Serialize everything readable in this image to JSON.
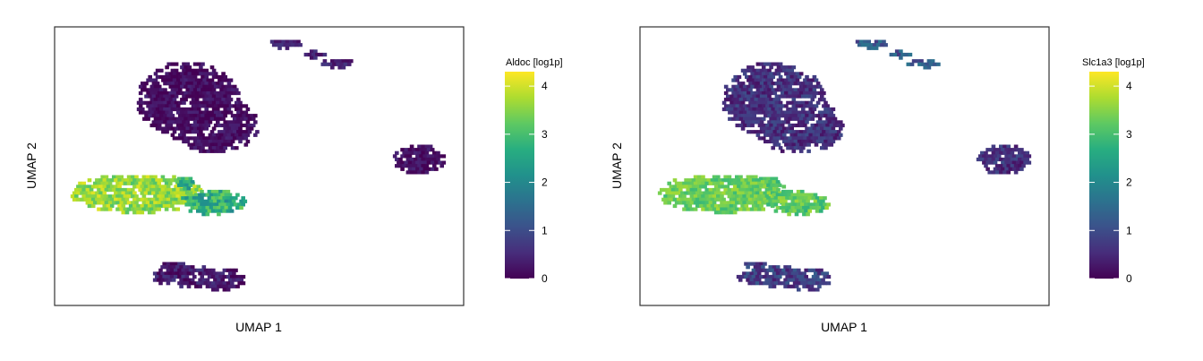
{
  "chart_data": [
    {
      "type": "scatter",
      "subtype": "hexbin-umap",
      "xlabel": "UMAP 1",
      "ylabel": "UMAP 2",
      "colorbar": {
        "label": "Aldoc [log1p]",
        "colormap": "viridis",
        "range": [
          0,
          4.3
        ],
        "ticks": [
          "0",
          "1",
          "2",
          "3",
          "4"
        ]
      },
      "clusters": [
        {
          "id": "top-small",
          "level": 0.4,
          "spread": 0.3
        },
        {
          "id": "big-upper",
          "level": 0.15,
          "spread": 0.3
        },
        {
          "id": "right",
          "level": 0.2,
          "spread": 0.3
        },
        {
          "id": "left-large",
          "level": 3.6,
          "spread": 0.5
        },
        {
          "id": "mid",
          "level": 2.7,
          "spread": 0.7
        },
        {
          "id": "bottom",
          "level": 0.3,
          "spread": 0.4
        }
      ]
    },
    {
      "type": "scatter",
      "subtype": "hexbin-umap",
      "xlabel": "UMAP 1",
      "ylabel": "UMAP 2",
      "colorbar": {
        "label": "Slc1a3 [log1p]",
        "colormap": "viridis",
        "range": [
          0,
          4.3
        ],
        "ticks": [
          "0",
          "1",
          "2",
          "3",
          "4"
        ]
      },
      "clusters": [
        {
          "id": "top-small",
          "level": 1.2,
          "spread": 0.5
        },
        {
          "id": "big-upper",
          "level": 0.6,
          "spread": 0.4
        },
        {
          "id": "right",
          "level": 0.6,
          "spread": 0.4
        },
        {
          "id": "left-large",
          "level": 3.3,
          "spread": 0.4
        },
        {
          "id": "mid",
          "level": 3.2,
          "spread": 0.5
        },
        {
          "id": "bottom",
          "level": 0.8,
          "spread": 0.5
        }
      ]
    }
  ]
}
